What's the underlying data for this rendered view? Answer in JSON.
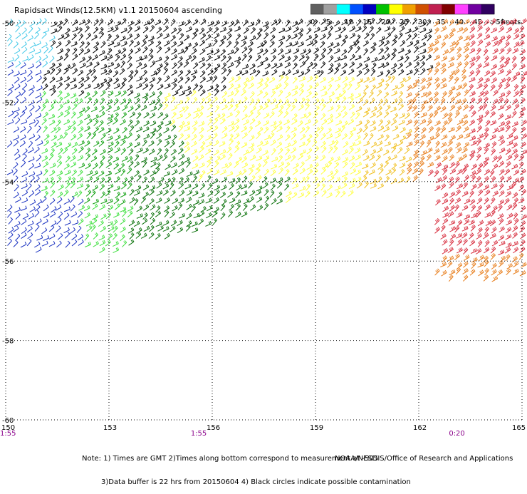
{
  "title": "Rapidsact Winds(12.5KM) v1.1 20150604 ascending",
  "legend": {
    "unit": "knots",
    "tick_labels": [
      "0",
      "5",
      "10",
      "15",
      "20",
      "25",
      "30",
      "35",
      "40",
      "45",
      ">50"
    ],
    "colors": [
      "#606060",
      "#a0a0a0",
      "#00ffff",
      "#0050ff",
      "#0000c0",
      "#00c000",
      "#ffff00",
      "#f0a000",
      "#d05000",
      "#c02050",
      "#800000",
      "#ff40ff",
      "#7000a0",
      "#300060"
    ]
  },
  "map": {
    "lon_range": [
      150,
      165
    ],
    "lat_range": [
      -60,
      -50
    ],
    "x_ticks": [
      "150",
      "153",
      "156",
      "159",
      "162",
      "165"
    ],
    "y_ticks": [
      "-50",
      "-52",
      "-54",
      "-56",
      "-58",
      "-60"
    ],
    "time_labels": [
      "1:55",
      "1:55",
      "0:20"
    ],
    "grid": "dotted"
  },
  "notes": {
    "line1": "Note: 1) Times are GMT 2)Times along bottom correspond to measurement at -50S",
    "line2": "3)Data buffer is 22 hrs from 20150604 4) Black circles indicate possible contamination"
  },
  "credit": "NOAA/NESDIS/Office of Research and Applications",
  "wind_colors": {
    "cyan": "#40c8e8",
    "blue": "#1830c0",
    "light_green": "#40e040",
    "green": "#10a010",
    "dark_green": "#087008",
    "yellow": "#ffff40",
    "gold": "#f0c020",
    "orange": "#e88020",
    "red": "#d83040",
    "black": "#000000"
  }
}
